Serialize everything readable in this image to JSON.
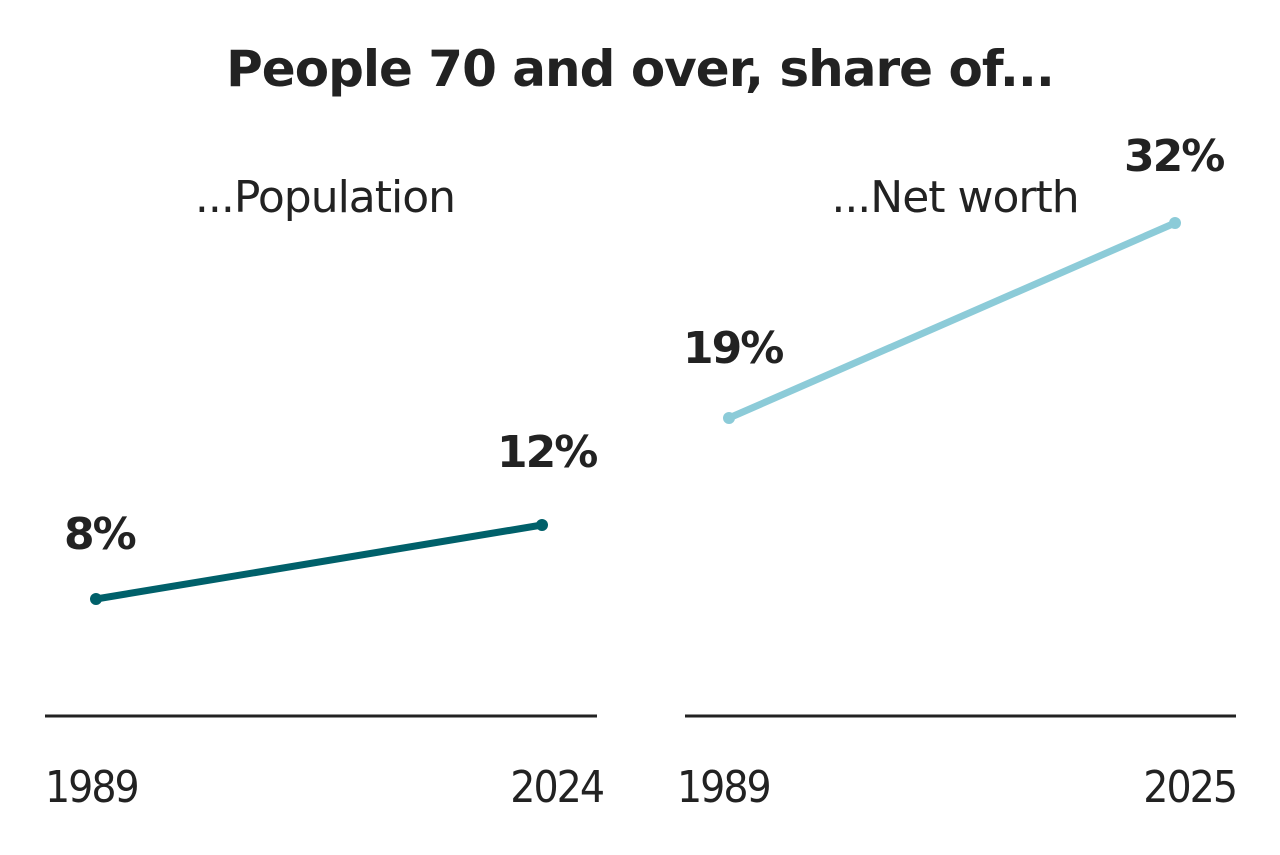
{
  "chart_data": [
    {
      "type": "line",
      "title": "People 70 and over, share of...",
      "subtitle": "...Population",
      "categories": [
        "1989",
        "2024"
      ],
      "values": [
        8,
        12
      ],
      "data_labels": [
        "8%",
        "12%"
      ],
      "color": "#00606a",
      "grid": false
    },
    {
      "type": "line",
      "subtitle": "...Net worth",
      "categories": [
        "1989",
        "2025"
      ],
      "values": [
        19,
        32
      ],
      "data_labels": [
        "19%",
        "32%"
      ],
      "color": "#8ccbd8",
      "grid": false
    }
  ]
}
